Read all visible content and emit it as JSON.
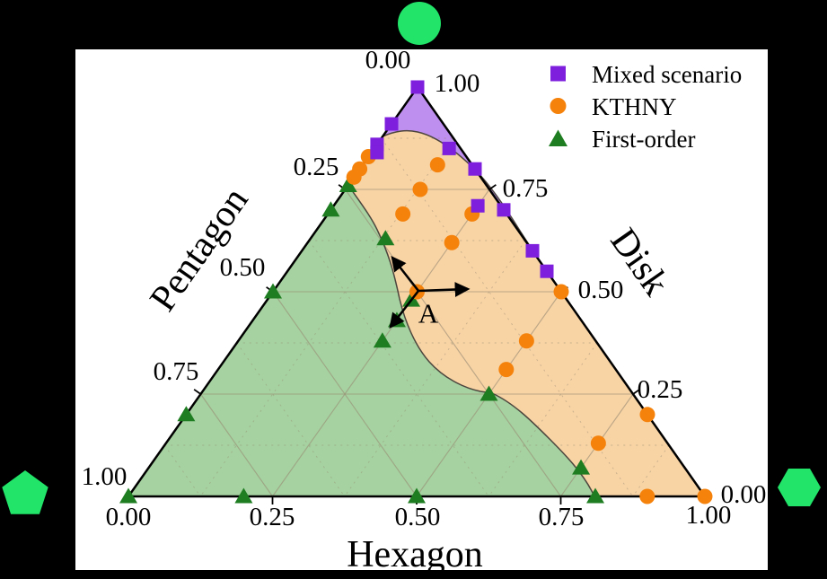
{
  "colors": {
    "background": "#000000",
    "plot_bg": "#ffffff",
    "text": "#000000",
    "grid": "#9a8d76",
    "region_edge": "#4d463e",
    "purple_fill": "#bf8fef",
    "orange_fill": "#f8d3a4",
    "green_fill": "#a5d2a0",
    "corner": "#21e469"
  },
  "axes_labels": {
    "left": {
      "title": "Pentagon",
      "ticks": [
        "0.00",
        "0.25",
        "0.50",
        "0.75",
        "1.00"
      ]
    },
    "right": {
      "title": "Disk",
      "ticks": [
        "1.00",
        "0.75",
        "0.50",
        "0.25",
        "0.00"
      ]
    },
    "bottom": {
      "title": "Hexagon",
      "ticks": [
        "0.00",
        "0.25",
        "0.50",
        "0.75",
        "1.00"
      ]
    }
  },
  "corner_markers": {
    "top": "circle",
    "bottom_left": "pentagon",
    "bottom_right": "hexagon"
  },
  "chart_data": {
    "type": "scatter",
    "subtype": "ternary-phase-diagram",
    "axes": {
      "top_vertex": "Disk",
      "bottom_left_vertex": "Pentagon",
      "bottom_right_vertex": "Hexagon",
      "range": [
        0,
        1
      ],
      "tick_step": 0.25
    },
    "grid": {
      "major_levels": [
        0.25,
        0.5,
        0.75
      ],
      "minor_levels": [
        0.125,
        0.375,
        0.625,
        0.875
      ]
    },
    "annotation_point": {
      "label": "A",
      "disk": 0.5,
      "pentagon": 0.25,
      "hexagon": 0.25
    },
    "series": [
      {
        "name": "Mixed scenario",
        "marker": "square",
        "color": "#7d1fdd",
        "points": [
          {
            "disk": 1.0,
            "pentagon": 0.0,
            "hexagon": 0.0
          },
          {
            "disk": 0.91,
            "pentagon": 0.09,
            "hexagon": 0.0
          },
          {
            "disk": 0.86,
            "pentagon": 0.14,
            "hexagon": 0.0
          },
          {
            "disk": 0.84,
            "pentagon": 0.15,
            "hexagon": 0.01
          },
          {
            "disk": 0.85,
            "pentagon": 0.02,
            "hexagon": 0.13
          },
          {
            "disk": 0.8,
            "pentagon": 0.0,
            "hexagon": 0.2
          },
          {
            "disk": 0.71,
            "pentagon": 0.04,
            "hexagon": 0.25
          },
          {
            "disk": 0.7,
            "pentagon": 0.0,
            "hexagon": 0.3
          },
          {
            "disk": 0.6,
            "pentagon": 0.0,
            "hexagon": 0.4
          },
          {
            "disk": 0.55,
            "pentagon": 0.0,
            "hexagon": 0.45
          }
        ]
      },
      {
        "name": "KTHNY",
        "marker": "circle",
        "color": "#f5820b",
        "points": [
          {
            "disk": 0.83,
            "pentagon": 0.17,
            "hexagon": 0.0
          },
          {
            "disk": 0.8,
            "pentagon": 0.2,
            "hexagon": 0.0
          },
          {
            "disk": 0.78,
            "pentagon": 0.22,
            "hexagon": 0.0
          },
          {
            "disk": 0.81,
            "pentagon": 0.06,
            "hexagon": 0.13
          },
          {
            "disk": 0.75,
            "pentagon": 0.12,
            "hexagon": 0.13
          },
          {
            "disk": 0.69,
            "pentagon": 0.18,
            "hexagon": 0.13
          },
          {
            "disk": 0.69,
            "pentagon": 0.06,
            "hexagon": 0.25
          },
          {
            "disk": 0.62,
            "pentagon": 0.13,
            "hexagon": 0.25
          },
          {
            "disk": 0.5,
            "pentagon": 0.25,
            "hexagon": 0.25
          },
          {
            "disk": 0.5,
            "pentagon": 0.0,
            "hexagon": 0.5
          },
          {
            "disk": 0.38,
            "pentagon": 0.12,
            "hexagon": 0.5
          },
          {
            "disk": 0.31,
            "pentagon": 0.19,
            "hexagon": 0.5
          },
          {
            "disk": 0.13,
            "pentagon": 0.12,
            "hexagon": 0.75
          },
          {
            "disk": 0.2,
            "pentagon": 0.0,
            "hexagon": 0.8
          },
          {
            "disk": 0.0,
            "pentagon": 0.1,
            "hexagon": 0.9
          },
          {
            "disk": 0.0,
            "pentagon": 0.0,
            "hexagon": 1.0
          }
        ]
      },
      {
        "name": "First-order",
        "marker": "triangle",
        "color": "#1e7d20",
        "points": [
          {
            "disk": 0.76,
            "pentagon": 0.24,
            "hexagon": 0.0
          },
          {
            "disk": 0.7,
            "pentagon": 0.3,
            "hexagon": 0.0
          },
          {
            "disk": 0.5,
            "pentagon": 0.5,
            "hexagon": 0.0
          },
          {
            "disk": 0.2,
            "pentagon": 0.8,
            "hexagon": 0.0
          },
          {
            "disk": 0.0,
            "pentagon": 1.0,
            "hexagon": 0.0
          },
          {
            "disk": 0.0,
            "pentagon": 0.8,
            "hexagon": 0.2
          },
          {
            "disk": 0.0,
            "pentagon": 0.5,
            "hexagon": 0.5
          },
          {
            "disk": 0.0,
            "pentagon": 0.19,
            "hexagon": 0.81
          },
          {
            "disk": 0.63,
            "pentagon": 0.24,
            "hexagon": 0.13
          },
          {
            "disk": 0.48,
            "pentagon": 0.27,
            "hexagon": 0.25
          },
          {
            "disk": 0.43,
            "pentagon": 0.32,
            "hexagon": 0.25
          },
          {
            "disk": 0.38,
            "pentagon": 0.37,
            "hexagon": 0.25
          },
          {
            "disk": 0.25,
            "pentagon": 0.25,
            "hexagon": 0.5
          },
          {
            "disk": 0.07,
            "pentagon": 0.18,
            "hexagon": 0.75
          }
        ]
      }
    ],
    "regions": [
      {
        "name": "Mixed scenario",
        "fill": "#bf8fef"
      },
      {
        "name": "KTHNY",
        "fill": "#f8d3a4"
      },
      {
        "name": "First-order",
        "fill": "#a5d2a0"
      }
    ]
  }
}
